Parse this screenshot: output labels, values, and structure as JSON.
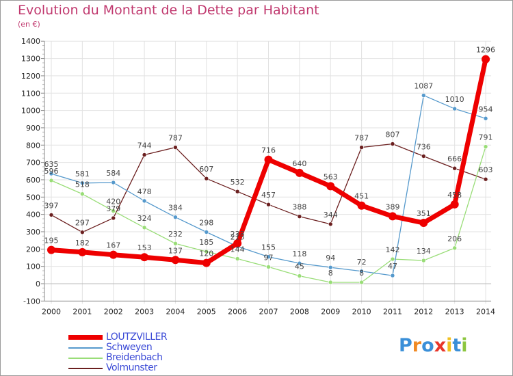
{
  "title": "Evolution du Montant de la Dette par Habitant",
  "subtitle": "(en €)",
  "brand": {
    "letters": [
      "P",
      "r",
      "o",
      "x",
      "i",
      "t",
      "i"
    ],
    "colors": [
      "#3a8fd8",
      "#f08a24",
      "#3a8fd8",
      "#e8362a",
      "#f0c020",
      "#3a8fd8",
      "#8cc63f"
    ]
  },
  "chart_data": {
    "type": "line",
    "title": "Evolution du Montant de la Dette par Habitant",
    "ylabel": "(en €)",
    "xlabel": "",
    "x": [
      "2000",
      "2001",
      "2002",
      "2003",
      "2004",
      "2005",
      "2006",
      "2007",
      "2008",
      "2009",
      "2010",
      "2011",
      "2012",
      "2013",
      "2014"
    ],
    "ylim": [
      -100,
      1400
    ],
    "yticks": [
      -100,
      0,
      100,
      200,
      300,
      400,
      500,
      600,
      700,
      800,
      900,
      1000,
      1100,
      1200,
      1300,
      1400
    ],
    "grid": true,
    "legend_position": "bottom-left",
    "series": [
      {
        "name": "Volmunster",
        "color": "#6b1f1f",
        "values": [
          397,
          297,
          379,
          744,
          787,
          607,
          532,
          457,
          388,
          344,
          787,
          807,
          736,
          666,
          603
        ],
        "labels": [
          "397",
          "297",
          "379",
          "744",
          "787",
          "607",
          "532",
          "457",
          "388",
          "344",
          "787",
          "807",
          "736",
          "666",
          "603"
        ]
      },
      {
        "name": "Breidenbach",
        "color": "#99dd77",
        "values": [
          596,
          518,
          420,
          324,
          232,
          185,
          144,
          97,
          45,
          8,
          8,
          142,
          134,
          206,
          791
        ],
        "labels": [
          "596",
          "518",
          "420",
          "324",
          "232",
          "185",
          "144",
          "97",
          "45",
          "8",
          "8",
          "142",
          "134",
          "206",
          "791"
        ]
      },
      {
        "name": "Schweyen",
        "color": "#5599cc",
        "values": [
          635,
          581,
          584,
          478,
          384,
          298,
          215,
          155,
          118,
          94,
          72,
          47,
          1087,
          1010,
          954
        ],
        "labels": [
          "635",
          "581",
          "584",
          "478",
          "384",
          "298",
          "215",
          "155",
          "118",
          "94",
          "72",
          "47",
          "1087",
          "1010",
          "954"
        ]
      },
      {
        "name": "LOUTZVILLER",
        "color": "#ee0000",
        "values": [
          195,
          182,
          167,
          153,
          137,
          120,
          233,
          716,
          640,
          563,
          451,
          389,
          351,
          458,
          1296
        ],
        "labels": [
          "195",
          "182",
          "167",
          "153",
          "137",
          "120",
          "233",
          "716",
          "640",
          "563",
          "451",
          "389",
          "351",
          "458",
          "1296"
        ]
      }
    ],
    "legend": [
      "LOUTZVILLER",
      "Schweyen",
      "Breidenbach",
      "Volmunster"
    ]
  }
}
